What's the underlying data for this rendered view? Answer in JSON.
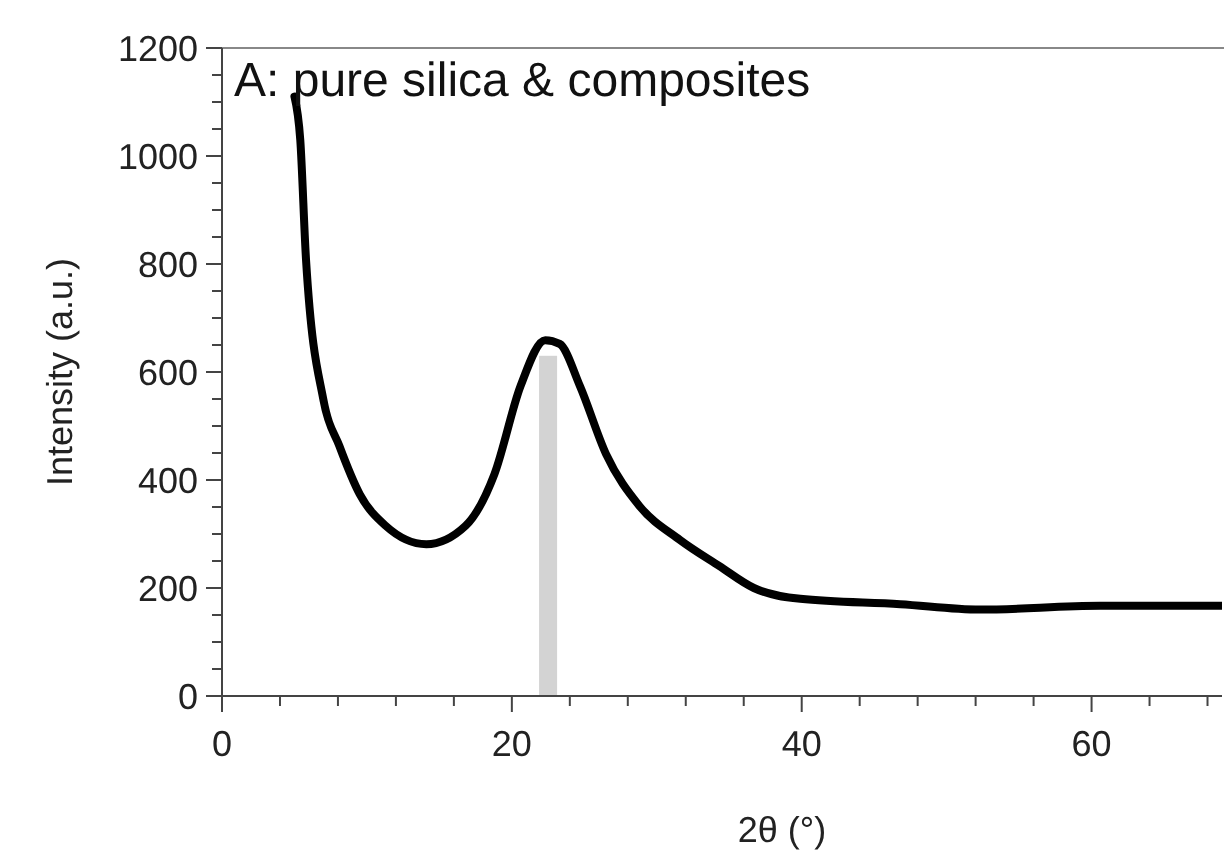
{
  "chart_data": {
    "type": "line",
    "title": "A: pure silica & composites",
    "xlabel": "2θ (°)",
    "ylabel": "Intensity (a.u.)",
    "xlim": [
      0,
      69
    ],
    "ylim": [
      0,
      1200
    ],
    "xticks": [
      0,
      {
        "value": 4,
        "label": null
      },
      {
        "value": 8,
        "label": null
      },
      {
        "value": 12,
        "label": null
      },
      {
        "value": 16,
        "label": null
      },
      20,
      {
        "value": 24,
        "label": null
      },
      {
        "value": 28,
        "label": null
      },
      {
        "value": 32,
        "label": null
      },
      {
        "value": 36,
        "label": null
      },
      40,
      {
        "value": 44,
        "label": null
      },
      {
        "value": 48,
        "label": null
      },
      {
        "value": 52,
        "label": null
      },
      {
        "value": 56,
        "label": null
      },
      60,
      {
        "value": 64,
        "label": null
      },
      {
        "value": 68,
        "label": null
      }
    ],
    "yticks": [
      0,
      {
        "value": 50,
        "label": null
      },
      {
        "value": 100,
        "label": null
      },
      {
        "value": 150,
        "label": null
      },
      200,
      {
        "value": 250,
        "label": null
      },
      {
        "value": 300,
        "label": null
      },
      {
        "value": 350,
        "label": null
      },
      400,
      {
        "value": 450,
        "label": null
      },
      {
        "value": 500,
        "label": null
      },
      {
        "value": 550,
        "label": null
      },
      600,
      {
        "value": 650,
        "label": null
      },
      {
        "value": 700,
        "label": null
      },
      {
        "value": 750,
        "label": null
      },
      800,
      {
        "value": 850,
        "label": null
      },
      {
        "value": 900,
        "label": null
      },
      {
        "value": 950,
        "label": null
      },
      1000,
      {
        "value": 1050,
        "label": null
      },
      {
        "value": 1100,
        "label": null
      },
      {
        "value": 1150,
        "label": null
      },
      1200
    ],
    "series": [
      {
        "type": "bar",
        "color": "#d3d3d3",
        "x": [
          22.5
        ],
        "values": [
          630
        ]
      },
      {
        "color": "#000000",
        "x": [
          5.0,
          5.4,
          5.8,
          7.0,
          8.1,
          9.5,
          11.3,
          14.1,
          16.8,
          18.8,
          20.6,
          22.3,
          23.3,
          24.7,
          26.5,
          28.8,
          31.6,
          34.3,
          36.7,
          39.9,
          46.8,
          52.3,
          60.6,
          68.8,
          69
        ],
        "values": [
          1110,
          1030,
          807,
          548,
          463,
          374,
          315,
          281,
          315,
          411,
          574,
          659,
          652,
          574,
          448,
          352,
          289,
          241,
          200,
          180,
          170,
          160,
          167,
          167,
          167
        ]
      }
    ],
    "grid": false,
    "marker": "none",
    "line_style": "solid"
  }
}
